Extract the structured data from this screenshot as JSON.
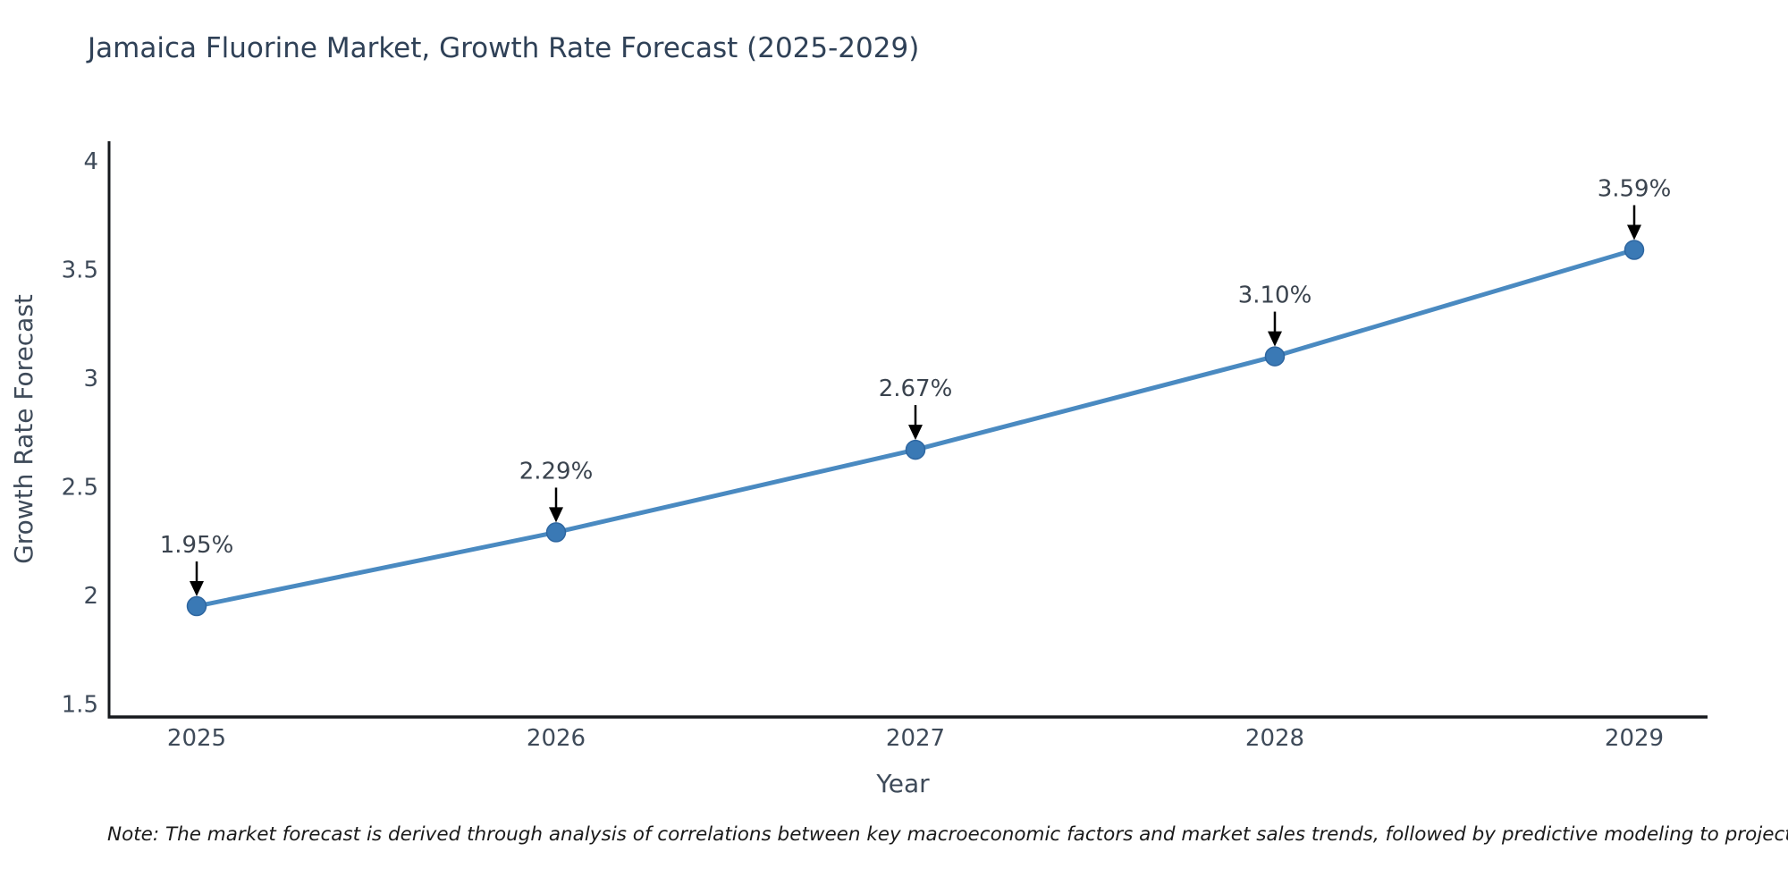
{
  "title": "Jamaica Fluorine Market, Growth Rate Forecast (2025-2029)",
  "footnote": "Note: The market forecast is derived through analysis of correlations between key macroeconomic factors and market sales trends, followed by predictive modeling to project future sales",
  "chart_data": {
    "type": "line",
    "title": "Jamaica Fluorine Market, Growth Rate Forecast (2025-2029)",
    "xlabel": "Year",
    "ylabel": "Growth Rate Forecast",
    "categories": [
      "2025",
      "2026",
      "2027",
      "2028",
      "2029"
    ],
    "values": [
      1.95,
      2.29,
      2.67,
      3.1,
      3.59
    ],
    "point_labels": [
      "1.95%",
      "2.29%",
      "2.67%",
      "3.10%",
      "3.59%"
    ],
    "yticks": [
      1.5,
      2,
      2.5,
      3,
      3.5,
      4
    ],
    "ytick_labels": [
      "1.5",
      "2",
      "2.5",
      "3",
      "3.5",
      "4"
    ],
    "ylim": [
      1.44,
      4.09
    ],
    "grid": false,
    "legend": "none",
    "marker": "circle",
    "annotation_arrows": true,
    "colors": {
      "line": "#4a8ac1",
      "marker": "#3a79b5",
      "marker_edge": "#2e66a0",
      "axis": "#16191d",
      "tick_text": "#3e4a59",
      "axis_label_text": "#3e4a59",
      "title_text": "#2f4157",
      "annotation_text": "#3a434e",
      "arrow": "#000000",
      "note_text": "#1a1a1a",
      "background": "#ffffff"
    }
  }
}
